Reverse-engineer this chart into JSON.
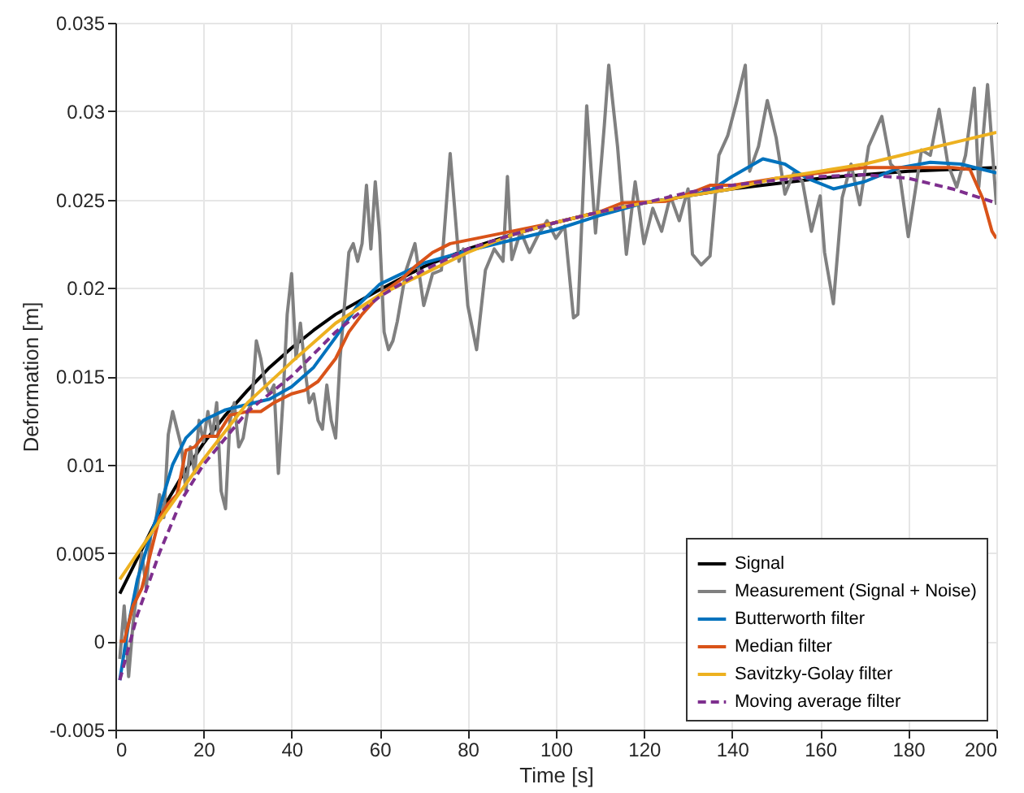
{
  "chart_data": {
    "type": "line",
    "xlabel": "Time [s]",
    "ylabel": "Deformation [m]",
    "xlim": [
      0,
      200
    ],
    "xticks": [
      0,
      20,
      40,
      60,
      80,
      100,
      120,
      140,
      160,
      180,
      200
    ],
    "ylim": [
      -0.005,
      0.035
    ],
    "yticks": [
      -0.005,
      0,
      0.005,
      0.01,
      0.015,
      0.02,
      0.025,
      0.03,
      0.035
    ],
    "grid": true,
    "legend": "bottom right",
    "series": [
      {
        "name": "Signal",
        "color": "#000000",
        "line_style": "solid",
        "x": [
          1,
          5,
          10,
          15,
          20,
          25,
          30,
          35,
          40,
          45,
          50,
          60,
          70,
          80,
          90,
          100,
          110,
          120,
          130,
          140,
          150,
          160,
          170,
          180,
          190,
          200
        ],
        "values": [
          0.0027,
          0.0047,
          0.0072,
          0.0093,
          0.0112,
          0.0128,
          0.0142,
          0.0155,
          0.0166,
          0.0176,
          0.0185,
          0.0199,
          0.0212,
          0.0222,
          0.023,
          0.0237,
          0.0243,
          0.0248,
          0.0252,
          0.0256,
          0.0259,
          0.0262,
          0.0264,
          0.0266,
          0.0267,
          0.0268
        ]
      },
      {
        "name": "Measurement (Signal + Noise)",
        "color": "#808080",
        "line_style": "solid",
        "x": [
          1,
          2,
          3,
          4,
          5,
          6,
          7,
          8,
          9,
          10,
          11,
          12,
          13,
          14,
          15,
          16,
          17,
          18,
          19,
          20,
          21,
          22,
          23,
          24,
          25,
          26,
          27,
          28,
          29,
          30,
          31,
          32,
          33,
          34,
          35,
          36,
          37,
          38,
          39,
          40,
          41,
          42,
          43,
          44,
          45,
          46,
          47,
          48,
          49,
          50,
          51,
          52,
          53,
          54,
          55,
          56,
          57,
          58,
          59,
          60,
          61,
          62,
          63,
          64,
          66,
          68,
          70,
          72,
          74,
          76,
          78,
          79,
          80,
          82,
          84,
          86,
          88,
          89,
          90,
          92,
          94,
          96,
          98,
          100,
          102,
          104,
          105,
          107,
          109,
          111,
          112,
          114,
          116,
          118,
          120,
          122,
          124,
          126,
          128,
          130,
          131,
          133,
          135,
          137,
          139,
          141,
          143,
          144,
          146,
          148,
          150,
          152,
          154,
          156,
          158,
          160,
          161,
          163,
          165,
          167,
          169,
          171,
          174,
          176,
          178,
          180,
          183,
          185,
          187,
          189,
          191,
          193,
          195,
          196,
          198,
          200
        ],
        "values": [
          -0.001,
          0.002,
          -0.002,
          0.001,
          0.003,
          0.005,
          0.003,
          0.006,
          0.0065,
          0.0083,
          0.007,
          0.0117,
          0.013,
          0.012,
          0.011,
          0.0085,
          0.011,
          0.0095,
          0.0125,
          0.0113,
          0.013,
          0.0116,
          0.0135,
          0.0085,
          0.0075,
          0.0125,
          0.0135,
          0.011,
          0.0115,
          0.013,
          0.0135,
          0.017,
          0.016,
          0.0145,
          0.014,
          0.0145,
          0.0095,
          0.0135,
          0.0185,
          0.0208,
          0.016,
          0.018,
          0.0155,
          0.0135,
          0.014,
          0.0125,
          0.012,
          0.0145,
          0.0125,
          0.0115,
          0.016,
          0.019,
          0.022,
          0.0225,
          0.0215,
          0.0225,
          0.0258,
          0.0222,
          0.026,
          0.023,
          0.0175,
          0.0165,
          0.017,
          0.0181,
          0.021,
          0.0225,
          0.019,
          0.0208,
          0.021,
          0.0276,
          0.0215,
          0.0222,
          0.019,
          0.0165,
          0.021,
          0.0222,
          0.0215,
          0.0263,
          0.0216,
          0.0232,
          0.022,
          0.023,
          0.0238,
          0.0228,
          0.0235,
          0.0183,
          0.0185,
          0.0303,
          0.0231,
          0.0292,
          0.0326,
          0.028,
          0.0219,
          0.026,
          0.0225,
          0.0245,
          0.0232,
          0.0252,
          0.0238,
          0.0256,
          0.0219,
          0.0213,
          0.0218,
          0.0275,
          0.0286,
          0.0305,
          0.0326,
          0.0266,
          0.028,
          0.0306,
          0.0285,
          0.0253,
          0.0265,
          0.026,
          0.0232,
          0.0252,
          0.022,
          0.0191,
          0.0251,
          0.027,
          0.0247,
          0.028,
          0.0297,
          0.027,
          0.0265,
          0.0229,
          0.0278,
          0.0275,
          0.0301,
          0.027,
          0.0257,
          0.0275,
          0.0313,
          0.0257,
          0.0315,
          0.0247
        ]
      },
      {
        "name": "Butterworth filter",
        "color": "#0072bd",
        "line_style": "solid",
        "x": [
          1,
          3,
          5,
          8,
          10,
          13,
          16,
          20,
          25,
          30,
          35,
          40,
          45,
          50,
          55,
          60,
          65,
          70,
          80,
          90,
          100,
          110,
          120,
          130,
          135,
          140,
          147,
          152,
          157,
          163,
          170,
          178,
          185,
          192,
          200
        ],
        "values": [
          -0.0022,
          0.001,
          0.0035,
          0.006,
          0.0075,
          0.01,
          0.0115,
          0.0125,
          0.0131,
          0.0134,
          0.0137,
          0.0144,
          0.0155,
          0.0172,
          0.019,
          0.0202,
          0.0208,
          0.0214,
          0.0221,
          0.0227,
          0.0233,
          0.0241,
          0.0248,
          0.0252,
          0.0255,
          0.0263,
          0.0273,
          0.027,
          0.0262,
          0.0256,
          0.026,
          0.0268,
          0.0271,
          0.027,
          0.0265
        ]
      },
      {
        "name": "Median filter",
        "color": "#d95319",
        "line_style": "solid",
        "x": [
          1,
          2,
          4,
          6,
          8,
          10,
          12,
          14,
          16,
          18,
          20,
          23,
          26,
          30,
          33,
          36,
          40,
          43,
          46,
          50,
          53,
          56,
          60,
          65,
          68,
          72,
          76,
          82,
          90,
          100,
          110,
          115,
          125,
          130,
          135,
          140,
          150,
          160,
          170,
          180,
          190,
          194,
          197,
          199,
          200
        ],
        "values": [
          0,
          0,
          0.002,
          0.003,
          0.005,
          0.007,
          0.0078,
          0.0083,
          0.0108,
          0.011,
          0.0116,
          0.0116,
          0.0128,
          0.013,
          0.013,
          0.0135,
          0.014,
          0.0142,
          0.0147,
          0.016,
          0.0175,
          0.0185,
          0.0196,
          0.0205,
          0.0212,
          0.022,
          0.0225,
          0.0228,
          0.0232,
          0.0237,
          0.0243,
          0.0248,
          0.0249,
          0.0253,
          0.0258,
          0.0258,
          0.0262,
          0.0265,
          0.0268,
          0.0268,
          0.0268,
          0.0267,
          0.025,
          0.0232,
          0.0228
        ]
      },
      {
        "name": "Savitzky-Golay filter",
        "color": "#edb120",
        "line_style": "solid",
        "x": [
          1,
          10,
          20,
          30,
          40,
          50,
          60,
          70,
          80,
          90,
          100,
          110,
          120,
          130,
          140,
          150,
          160,
          170,
          180,
          190,
          200
        ],
        "values": [
          0.0035,
          0.0068,
          0.0103,
          0.0135,
          0.0158,
          0.018,
          0.0196,
          0.0208,
          0.022,
          0.023,
          0.0237,
          0.0243,
          0.0248,
          0.0252,
          0.0256,
          0.0262,
          0.0266,
          0.027,
          0.0276,
          0.0282,
          0.0288
        ]
      },
      {
        "name": "Moving average filter",
        "color": "#7e2f8e",
        "line_style": "dashed",
        "x": [
          1,
          5,
          10,
          15,
          20,
          25,
          30,
          40,
          50,
          60,
          70,
          80,
          90,
          100,
          110,
          120,
          130,
          140,
          150,
          160,
          170,
          180,
          190,
          200
        ],
        "values": [
          -0.0022,
          0.0015,
          0.005,
          0.008,
          0.01,
          0.0115,
          0.013,
          0.015,
          0.0175,
          0.0195,
          0.021,
          0.0222,
          0.023,
          0.0237,
          0.0243,
          0.0248,
          0.0254,
          0.0258,
          0.0261,
          0.0263,
          0.0264,
          0.0262,
          0.0256,
          0.0248
        ]
      }
    ]
  }
}
